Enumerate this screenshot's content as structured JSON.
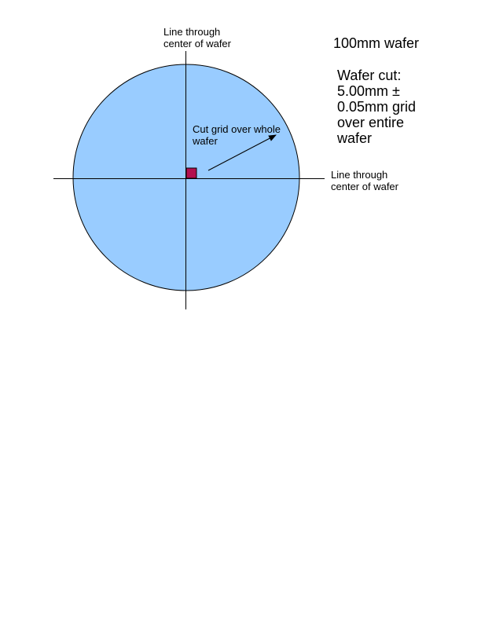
{
  "top_axis_label": {
    "line1": "Line through",
    "line2": "center of wafer"
  },
  "right_axis_label": {
    "line1": "Line through",
    "line2": "center of wafer"
  },
  "wafer_title": "100mm wafer",
  "wafer_cut_note": {
    "line1": "Wafer cut:",
    "line2": "5.00mm ±",
    "line3": "0.05mm grid",
    "line4": "over entire",
    "line5": "wafer"
  },
  "grid_label": {
    "line1": "Cut grid over whole",
    "line2": "wafer"
  },
  "colors": {
    "wafer_fill": "#99ccff",
    "die_fill": "#b3104f",
    "line": "#000000"
  }
}
